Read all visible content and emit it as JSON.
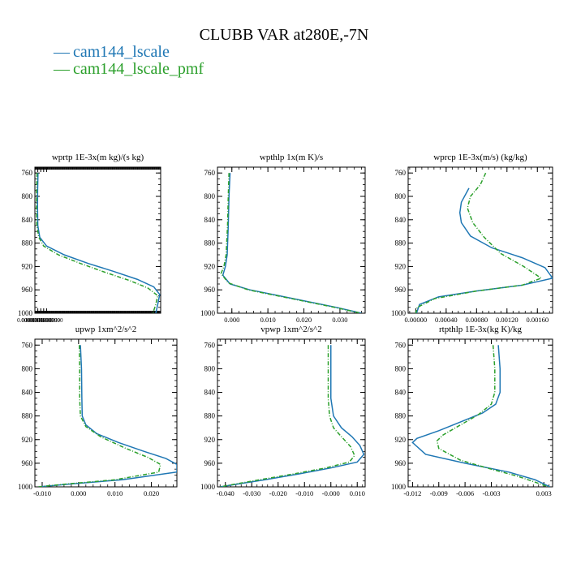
{
  "page": {
    "title": "CLUBB VAR at280E,-7N",
    "legend": [
      {
        "dash": "—",
        "label": "cam144_lscale",
        "color": "#1f77b4"
      },
      {
        "dash": "—",
        "label": "cam144_lscale_pmf",
        "color": "#2ca02c"
      }
    ]
  },
  "chart_data": [
    {
      "type": "line",
      "title": "wprtp  1E-3x(m kg)/(s kg)",
      "xlim": [
        0.0,
        0.0129
      ],
      "ylim": [
        1000,
        750
      ],
      "y_ticks": [
        760,
        800,
        840,
        880,
        920,
        960,
        1000
      ],
      "x_ticks": [
        0.0,
        0.0003,
        0.0006,
        0.0009,
        0.0012
      ],
      "x_tick_labels": [
        "0.00000000000",
        "0.0003000000",
        "0.0005999999",
        "0.0008999999",
        "0.0012000000"
      ],
      "y_labels": [
        "760",
        "800",
        "840",
        "880",
        "920",
        "960",
        "1000"
      ],
      "series": [
        {
          "name": "cam144_lscale",
          "color": "#1f77b4",
          "dashed": false,
          "points": [
            [
              0.00032,
              760
            ],
            [
              0.00028,
              790
            ],
            [
              0.00027,
              820
            ],
            [
              0.0003,
              850
            ],
            [
              0.0005,
              870
            ],
            [
              0.0012,
              885
            ],
            [
              0.003,
              900
            ],
            [
              0.0055,
              915
            ],
            [
              0.008,
              928
            ],
            [
              0.0105,
              942
            ],
            [
              0.0122,
              955
            ],
            [
              0.0128,
              968
            ],
            [
              0.0126,
              985
            ],
            [
              0.0124,
              1000
            ]
          ]
        },
        {
          "name": "cam144_lscale_pmf",
          "color": "#2ca02c",
          "dashed": true,
          "points": [
            [
              0.00022,
              760
            ],
            [
              0.00018,
              790
            ],
            [
              0.00017,
              820
            ],
            [
              0.0002,
              850
            ],
            [
              0.0004,
              870
            ],
            [
              0.0009,
              885
            ],
            [
              0.0024,
              900
            ],
            [
              0.0047,
              915
            ],
            [
              0.0072,
              930
            ],
            [
              0.0097,
              944
            ],
            [
              0.0116,
              957
            ],
            [
              0.0126,
              970
            ],
            [
              0.0124,
              985
            ],
            [
              0.0121,
              1000
            ]
          ]
        }
      ]
    },
    {
      "type": "line",
      "title": "wpthlp  1x(m K)/s",
      "xlim": [
        -0.004,
        0.037
      ],
      "ylim": [
        1000,
        750
      ],
      "y_ticks": [
        760,
        800,
        840,
        880,
        920,
        960,
        1000
      ],
      "x_ticks": [
        0.0,
        0.01,
        0.02,
        0.03
      ],
      "x_tick_labels": [
        "0.000",
        "0.010",
        "0.020",
        "0.030"
      ],
      "y_labels": [
        "760",
        "800",
        "840",
        "880",
        "920",
        "960",
        "1000"
      ],
      "series": [
        {
          "name": "cam144_lscale",
          "color": "#1f77b4",
          "dashed": false,
          "points": [
            [
              -0.0005,
              760
            ],
            [
              -0.0008,
              800
            ],
            [
              -0.001,
              850
            ],
            [
              -0.0013,
              900
            ],
            [
              -0.0018,
              920
            ],
            [
              -0.0025,
              935
            ],
            [
              -0.0005,
              950
            ],
            [
              0.005,
              960
            ],
            [
              0.013,
              970
            ],
            [
              0.021,
              980
            ],
            [
              0.029,
              990
            ],
            [
              0.036,
              1000
            ]
          ]
        },
        {
          "name": "cam144_lscale_pmf",
          "color": "#2ca02c",
          "dashed": true,
          "points": [
            [
              -0.0008,
              760
            ],
            [
              -0.001,
              800
            ],
            [
              -0.0012,
              850
            ],
            [
              -0.0016,
              900
            ],
            [
              -0.0022,
              920
            ],
            [
              -0.003,
              932
            ],
            [
              -0.001,
              948
            ],
            [
              0.0045,
              960
            ],
            [
              0.0125,
              970
            ],
            [
              0.0205,
              980
            ],
            [
              0.0285,
              990
            ],
            [
              0.0358,
              1000
            ]
          ]
        }
      ]
    },
    {
      "type": "line",
      "title": "wprcp  1E-3x(m/s) (kg/kg)",
      "xlim": [
        -0.0001,
        0.0018
      ],
      "ylim": [
        1000,
        750
      ],
      "y_ticks": [
        760,
        800,
        840,
        880,
        920,
        960,
        1000
      ],
      "x_ticks": [
        0.0,
        0.0004,
        0.0008,
        0.0012,
        0.0016
      ],
      "x_tick_labels": [
        "0.00000",
        "0.00040",
        "0.00080",
        "0.00120",
        "0.00160"
      ],
      "y_labels": [
        "760",
        "800",
        "840",
        "880",
        "920",
        "960",
        "1000"
      ],
      "series": [
        {
          "name": "cam144_lscale",
          "color": "#1f77b4",
          "dashed": false,
          "points": [
            [
              0.0007,
              786
            ],
            [
              0.0006,
              810
            ],
            [
              0.00058,
              828
            ],
            [
              0.0006,
              845
            ],
            [
              0.00072,
              868
            ],
            [
              0.001,
              888
            ],
            [
              0.0014,
              905
            ],
            [
              0.0017,
              922
            ],
            [
              0.0018,
              940
            ],
            [
              0.0014,
              952
            ],
            [
              0.0008,
              962
            ],
            [
              0.0003,
              972
            ],
            [
              5e-05,
              985
            ],
            [
              1e-05,
              1000
            ]
          ]
        },
        {
          "name": "cam144_lscale_pmf",
          "color": "#2ca02c",
          "dashed": true,
          "points": [
            [
              0.00092,
              760
            ],
            [
              0.00085,
              780
            ],
            [
              0.00072,
              800
            ],
            [
              0.00068,
              820
            ],
            [
              0.00075,
              845
            ],
            [
              0.0009,
              870
            ],
            [
              0.00112,
              898
            ],
            [
              0.00142,
              920
            ],
            [
              0.00165,
              940
            ],
            [
              0.0014,
              952
            ],
            [
              0.0008,
              962
            ],
            [
              0.00025,
              975
            ],
            [
              2e-05,
              990
            ],
            [
              0.0,
              1000
            ]
          ]
        }
      ]
    },
    {
      "type": "line",
      "title": "upwp  1xm^2/s^2",
      "xlim": [
        -0.012,
        0.027
      ],
      "ylim": [
        1000,
        750
      ],
      "y_ticks": [
        760,
        800,
        840,
        880,
        920,
        960,
        1000
      ],
      "x_ticks": [
        -0.01,
        0.0,
        0.01,
        0.02
      ],
      "x_tick_labels": [
        "-0.010",
        "0.000",
        "0.010",
        "0.020"
      ],
      "y_labels": [
        "760",
        "800",
        "840",
        "880",
        "920",
        "960",
        "1000"
      ],
      "series": [
        {
          "name": "cam144_lscale",
          "color": "#1f77b4",
          "dashed": false,
          "points": [
            [
              0.0005,
              760
            ],
            [
              0.0008,
              800
            ],
            [
              0.0009,
              850
            ],
            [
              0.001,
              880
            ],
            [
              0.002,
              895
            ],
            [
              0.005,
              910
            ],
            [
              0.011,
              925
            ],
            [
              0.018,
              940
            ],
            [
              0.024,
              952
            ],
            [
              0.027,
              962
            ],
            [
              0.027,
              975
            ],
            [
              0.012,
              988
            ],
            [
              -0.002,
              995
            ],
            [
              -0.011,
              1000
            ]
          ]
        },
        {
          "name": "cam144_lscale_pmf",
          "color": "#2ca02c",
          "dashed": true,
          "points": [
            [
              0.0002,
              760
            ],
            [
              0.0003,
              800
            ],
            [
              0.0003,
              850
            ],
            [
              0.0005,
              880
            ],
            [
              0.002,
              898
            ],
            [
              0.006,
              915
            ],
            [
              0.013,
              935
            ],
            [
              0.019,
              950
            ],
            [
              0.0225,
              962
            ],
            [
              0.022,
              975
            ],
            [
              0.01,
              988
            ],
            [
              -0.003,
              995
            ],
            [
              -0.011,
              1000
            ]
          ]
        }
      ]
    },
    {
      "type": "line",
      "title": "vpwp  1xm^2/s^2",
      "xlim": [
        -0.043,
        0.013
      ],
      "ylim": [
        1000,
        750
      ],
      "y_ticks": [
        760,
        800,
        840,
        880,
        920,
        960,
        1000
      ],
      "x_ticks": [
        -0.04,
        -0.03,
        -0.02,
        -0.01,
        0.0,
        0.01
      ],
      "x_tick_labels": [
        "-0.040",
        "-0.030",
        "-0.020",
        "-0.010",
        "-0.000",
        "0.010"
      ],
      "y_labels": [
        "760",
        "800",
        "840",
        "880",
        "920",
        "960",
        "1000"
      ],
      "series": [
        {
          "name": "cam144_lscale",
          "color": "#1f77b4",
          "dashed": false,
          "points": [
            [
              0.0,
              760
            ],
            [
              0.0,
              800
            ],
            [
              0.0,
              850
            ],
            [
              0.001,
              880
            ],
            [
              0.004,
              900
            ],
            [
              0.008,
              915
            ],
            [
              0.011,
              930
            ],
            [
              0.0125,
              945
            ],
            [
              0.01,
              958
            ],
            [
              0.0,
              968
            ],
            [
              -0.012,
              978
            ],
            [
              -0.025,
              988
            ],
            [
              -0.035,
              995
            ],
            [
              -0.042,
              1000
            ]
          ]
        },
        {
          "name": "cam144_lscale_pmf",
          "color": "#2ca02c",
          "dashed": true,
          "points": [
            [
              -0.001,
              760
            ],
            [
              -0.001,
              800
            ],
            [
              -0.001,
              850
            ],
            [
              -0.0005,
              880
            ],
            [
              0.001,
              900
            ],
            [
              0.004,
              915
            ],
            [
              0.0075,
              932
            ],
            [
              0.009,
              947
            ],
            [
              0.007,
              958
            ],
            [
              -0.002,
              968
            ],
            [
              -0.014,
              978
            ],
            [
              -0.027,
              988
            ],
            [
              -0.036,
              995
            ],
            [
              -0.042,
              1000
            ]
          ]
        }
      ]
    },
    {
      "type": "line",
      "title": "rtpthlp  1E-3x(kg K)/kg",
      "xlim": [
        -0.0125,
        0.004
      ],
      "ylim": [
        1000,
        750
      ],
      "y_ticks": [
        760,
        800,
        840,
        880,
        920,
        960,
        1000
      ],
      "x_ticks": [
        -0.012,
        -0.009,
        -0.006,
        -0.003,
        0.003
      ],
      "x_tick_labels": [
        "-0.012",
        "-0.009",
        "-0.006",
        "-0.003",
        "0.003"
      ],
      "y_labels": [
        "760",
        "800",
        "840",
        "880",
        "920",
        "960",
        "1000"
      ],
      "series": [
        {
          "name": "cam144_lscale",
          "color": "#1f77b4",
          "dashed": false,
          "points": [
            [
              -0.0022,
              760
            ],
            [
              -0.002,
              800
            ],
            [
              -0.002,
              840
            ],
            [
              -0.0025,
              860
            ],
            [
              -0.004,
              875
            ],
            [
              -0.0065,
              890
            ],
            [
              -0.009,
              905
            ],
            [
              -0.0115,
              918
            ],
            [
              -0.012,
              925
            ],
            [
              -0.0105,
              945
            ],
            [
              -0.006,
              960
            ],
            [
              -0.001,
              975
            ],
            [
              0.002,
              988
            ],
            [
              0.0037,
              1000
            ]
          ]
        },
        {
          "name": "cam144_lscale_pmf",
          "color": "#2ca02c",
          "dashed": true,
          "points": [
            [
              -0.0028,
              760
            ],
            [
              -0.0026,
              800
            ],
            [
              -0.0026,
              840
            ],
            [
              -0.003,
              860
            ],
            [
              -0.0045,
              878
            ],
            [
              -0.0065,
              895
            ],
            [
              -0.0085,
              912
            ],
            [
              -0.0092,
              922
            ],
            [
              -0.009,
              935
            ],
            [
              -0.0065,
              955
            ],
            [
              -0.003,
              970
            ],
            [
              0.0,
              982
            ],
            [
              0.002,
              992
            ],
            [
              0.0035,
              1000
            ]
          ]
        }
      ]
    }
  ]
}
